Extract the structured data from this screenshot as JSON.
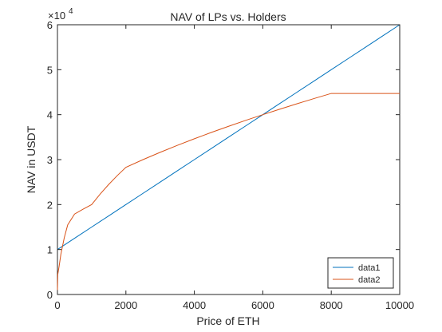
{
  "chart_data": {
    "type": "line",
    "title": "NAV of LPs vs. Holders",
    "xlabel": "Price of ETH",
    "ylabel": "NAV in USDT",
    "y_exponent_label": "×10",
    "y_exponent": "4",
    "xlim": [
      0,
      10000
    ],
    "ylim": [
      0,
      60000
    ],
    "xticks": [
      0,
      2000,
      4000,
      6000,
      8000,
      10000
    ],
    "yticks": [
      0,
      10000,
      20000,
      30000,
      40000,
      50000,
      60000
    ],
    "xtick_labels": [
      "0",
      "2000",
      "4000",
      "6000",
      "8000",
      "10000"
    ],
    "ytick_labels": [
      "0",
      "1",
      "2",
      "3",
      "4",
      "5",
      "6"
    ],
    "grid": false,
    "legend_position": "bottom-right",
    "series": [
      {
        "name": "data1",
        "color": "#0072BD",
        "x": [
          0,
          500,
          1000,
          1500,
          2000,
          2500,
          3000,
          3500,
          4000,
          4500,
          5000,
          5500,
          6000,
          6500,
          7000,
          7500,
          8000,
          8500,
          9000,
          9500,
          10000
        ],
        "y": [
          10000,
          12500,
          15000,
          17500,
          20000,
          22500,
          25000,
          27500,
          30000,
          32500,
          35000,
          37500,
          40000,
          42500,
          45000,
          47500,
          50000,
          52500,
          55000,
          57500,
          60000
        ]
      },
      {
        "name": "data2",
        "color": "#D95319",
        "x": [
          0,
          10,
          50,
          100,
          200,
          300,
          500,
          750,
          1000,
          1250,
          1500,
          1750,
          2000,
          2500,
          3000,
          3500,
          4000,
          4500,
          5000,
          5500,
          6000,
          6500,
          7000,
          7500,
          8000,
          8500,
          9000,
          9500,
          10000
        ],
        "y": [
          1000,
          4472,
          6325,
          8944,
          12649,
          15492,
          17889,
          18974,
          20000,
          22361,
          24495,
          26458,
          28284,
          30000,
          31623,
          33166,
          34641,
          36056,
          37417,
          38730,
          40000,
          41231,
          42426,
          43589,
          44721,
          44721,
          44721,
          44721,
          44721
        ]
      }
    ]
  }
}
